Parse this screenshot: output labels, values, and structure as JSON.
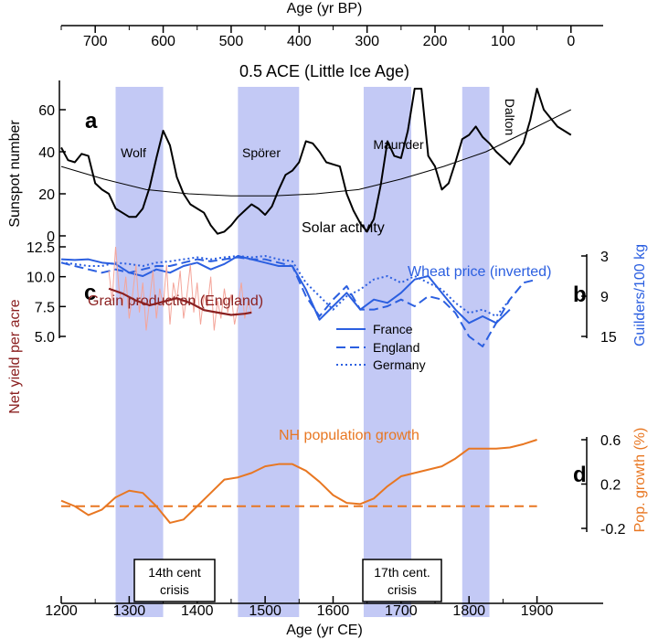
{
  "figure": {
    "title": "0.5 ACE (Little Ice Age)",
    "top_axis_label": "Age (yr BP)",
    "bottom_axis_label": "Age (yr CE)",
    "top_ticks": [
      "700",
      "600",
      "500",
      "400",
      "300",
      "200",
      "100",
      "0"
    ],
    "bottom_ticks": [
      "1200",
      "1300",
      "1400",
      "1500",
      "1600",
      "1700",
      "1800",
      "1900"
    ],
    "band_color": "#c3c9f5"
  },
  "chart_data": [
    {
      "panel": "a",
      "type": "line",
      "ylabel": "Sunspot number",
      "ylim": [
        0,
        70
      ],
      "yticks": [
        "0",
        "20",
        "40",
        "60"
      ],
      "series_label": "Solar activity",
      "color": "#000000",
      "minima": [
        {
          "name": "Wolf",
          "start": 1280,
          "end": 1350
        },
        {
          "name": "Spörer",
          "start": 1460,
          "end": 1550
        },
        {
          "name": "Maunder",
          "start": 1645,
          "end": 1715
        },
        {
          "name": "Dalton",
          "start": 1790,
          "end": 1830
        }
      ],
      "x": [
        1200,
        1210,
        1220,
        1230,
        1240,
        1250,
        1260,
        1270,
        1280,
        1290,
        1300,
        1310,
        1320,
        1330,
        1340,
        1350,
        1360,
        1370,
        1380,
        1390,
        1400,
        1410,
        1420,
        1430,
        1440,
        1450,
        1460,
        1470,
        1480,
        1490,
        1500,
        1510,
        1520,
        1530,
        1540,
        1550,
        1560,
        1570,
        1580,
        1590,
        1600,
        1610,
        1620,
        1630,
        1640,
        1650,
        1660,
        1670,
        1680,
        1690,
        1700,
        1710,
        1720,
        1730,
        1740,
        1750,
        1760,
        1770,
        1780,
        1790,
        1800,
        1810,
        1820,
        1830,
        1840,
        1850,
        1860,
        1870,
        1880,
        1890,
        1900,
        1910,
        1920,
        1930,
        1940,
        1950
      ],
      "values": [
        42,
        36,
        35,
        39,
        38,
        25,
        22,
        20,
        13,
        11,
        9,
        9,
        13,
        23,
        37,
        50,
        43,
        28,
        20,
        15,
        13,
        11,
        5,
        1,
        2,
        5,
        9,
        12,
        15,
        13,
        10,
        14,
        22,
        29,
        31,
        35,
        45,
        44,
        40,
        35,
        34,
        33,
        20,
        12,
        6,
        2,
        8,
        24,
        45,
        38,
        37,
        50,
        71,
        70,
        38,
        33,
        22,
        25,
        35,
        46,
        48,
        52,
        47,
        44,
        40,
        37,
        34,
        39,
        44,
        55,
        70,
        60,
        56,
        52,
        50,
        48
      ],
      "trend_values": [
        33,
        27,
        22,
        20,
        19,
        19,
        20,
        22,
        27,
        33,
        40,
        50,
        60
      ]
    },
    {
      "panel": "b",
      "type": "line",
      "ylabel": "Guilders/100 kg",
      "series_label": "Wheat price (inverted)",
      "yticks": [
        "3",
        "9",
        "15"
      ],
      "y_inverted": true,
      "color": "#2b5fe0",
      "series": [
        {
          "name": "France",
          "style": "solid",
          "x": [
            1200,
            1220,
            1240,
            1260,
            1280,
            1300,
            1320,
            1340,
            1360,
            1380,
            1400,
            1420,
            1440,
            1460,
            1480,
            1500,
            1520,
            1540,
            1560,
            1580,
            1600,
            1620,
            1640,
            1660,
            1680,
            1700,
            1720,
            1740,
            1760,
            1780,
            1800,
            1820,
            1840,
            1860
          ],
          "values": [
            3.5,
            3.6,
            3.5,
            4.0,
            4.2,
            5.5,
            6.0,
            5.0,
            5.5,
            4.5,
            4.0,
            5.0,
            4.2,
            3.0,
            3.5,
            4.0,
            4.5,
            4.5,
            8.0,
            12.5,
            10.5,
            8.5,
            11.0,
            9.5,
            10.0,
            8.5,
            6.5,
            6.0,
            8.5,
            11.0,
            13.0,
            12.0,
            13.0,
            11.0
          ]
        },
        {
          "name": "England",
          "style": "dashed",
          "x": [
            1200,
            1220,
            1240,
            1260,
            1280,
            1300,
            1320,
            1340,
            1360,
            1380,
            1400,
            1420,
            1440,
            1460,
            1480,
            1500,
            1520,
            1540,
            1560,
            1580,
            1600,
            1620,
            1640,
            1660,
            1680,
            1700,
            1720,
            1740,
            1760,
            1780,
            1800,
            1820,
            1840,
            1860,
            1880,
            1900
          ],
          "values": [
            4.0,
            4.5,
            5.0,
            5.5,
            5.0,
            5.5,
            5.0,
            4.5,
            4.5,
            4.0,
            3.5,
            3.8,
            3.5,
            3.2,
            3.5,
            3.5,
            4.0,
            4.5,
            9.0,
            12.0,
            9.5,
            7.5,
            11.0,
            11.0,
            10.5,
            9.5,
            10.5,
            9.0,
            9.5,
            11.5,
            15.0,
            16.5,
            13.0,
            9.5,
            7.0,
            6.5
          ]
        },
        {
          "name": "Germany",
          "style": "dotted",
          "x": [
            1200,
            1220,
            1240,
            1260,
            1280,
            1300,
            1320,
            1340,
            1360,
            1380,
            1400,
            1420,
            1440,
            1460,
            1480,
            1500,
            1520,
            1540,
            1560,
            1580,
            1600,
            1620,
            1640,
            1660,
            1680,
            1700,
            1720,
            1740,
            1760,
            1780,
            1800,
            1820,
            1840,
            1860
          ],
          "values": [
            4.0,
            4.2,
            4.5,
            4.5,
            4.0,
            4.2,
            4.5,
            4.0,
            3.8,
            3.5,
            3.2,
            3.5,
            3.2,
            3.0,
            3.2,
            3.0,
            3.5,
            3.8,
            7.0,
            9.0,
            11.0,
            9.0,
            8.0,
            6.5,
            6.0,
            7.0,
            6.0,
            7.0,
            8.0,
            10.0,
            11.5,
            11.0,
            12.0,
            9.5
          ]
        }
      ]
    },
    {
      "panel": "c",
      "type": "line",
      "ylabel": "Net yield per acre",
      "series_label": "Grain production (England)",
      "yticks": [
        "5.0",
        "7.5",
        "10.0",
        "12.5"
      ],
      "color": "#8b2020",
      "raw_color": "#f4a59a",
      "smooth": {
        "x": [
          1270,
          1290,
          1310,
          1330,
          1350,
          1370,
          1390,
          1410,
          1430,
          1450,
          1470,
          1480
        ],
        "values": [
          9.0,
          8.6,
          8.0,
          7.6,
          7.9,
          8.2,
          7.8,
          7.2,
          7.0,
          6.8,
          6.9,
          7.0
        ]
      },
      "raw": {
        "x": [
          1270,
          1275,
          1280,
          1285,
          1290,
          1295,
          1300,
          1305,
          1310,
          1315,
          1320,
          1325,
          1330,
          1335,
          1340,
          1345,
          1350,
          1355,
          1360,
          1365,
          1370,
          1375,
          1380,
          1385,
          1390,
          1395,
          1400,
          1405,
          1410,
          1415,
          1420,
          1425,
          1430,
          1435,
          1440,
          1445,
          1450,
          1455,
          1460,
          1465,
          1470,
          1475,
          1480
        ],
        "values": [
          10.5,
          8.0,
          12.5,
          9.0,
          7.5,
          10.0,
          6.5,
          8.5,
          11.0,
          7.0,
          9.5,
          5.5,
          8.0,
          10.5,
          6.5,
          9.0,
          7.5,
          11.0,
          6.0,
          9.5,
          8.0,
          10.5,
          6.5,
          8.5,
          11.0,
          7.0,
          9.5,
          6.0,
          8.5,
          7.5,
          10.0,
          5.5,
          8.0,
          6.5,
          9.0,
          7.0,
          8.5,
          6.0,
          7.5,
          9.5,
          6.5,
          8.0,
          7.0
        ]
      }
    },
    {
      "panel": "d",
      "type": "line",
      "ylabel": "Pop. growth (%)",
      "series_label": "NH population growth",
      "yticks": [
        "-0.2",
        "0.2",
        "0.6"
      ],
      "color": "#e87722",
      "zero_line": 0,
      "x": [
        1200,
        1220,
        1240,
        1260,
        1280,
        1300,
        1320,
        1340,
        1360,
        1380,
        1400,
        1420,
        1440,
        1460,
        1480,
        1500,
        1520,
        1540,
        1560,
        1580,
        1600,
        1620,
        1640,
        1660,
        1680,
        1700,
        1720,
        1740,
        1760,
        1780,
        1800,
        1820,
        1840,
        1860,
        1880,
        1900
      ],
      "values": [
        0.05,
        0.0,
        -0.08,
        -0.03,
        0.08,
        0.14,
        0.12,
        0.0,
        -0.15,
        -0.12,
        0.0,
        0.12,
        0.24,
        0.26,
        0.3,
        0.36,
        0.38,
        0.38,
        0.32,
        0.22,
        0.1,
        0.03,
        0.02,
        0.07,
        0.18,
        0.27,
        0.3,
        0.33,
        0.36,
        0.43,
        0.52,
        0.52,
        0.52,
        0.53,
        0.56,
        0.6
      ]
    }
  ],
  "crisis_labels": [
    {
      "line1": "14th cent",
      "line2": "crisis",
      "year": 1322
    },
    {
      "line1": "17th cent.",
      "line2": "crisis",
      "year": 1660
    }
  ]
}
